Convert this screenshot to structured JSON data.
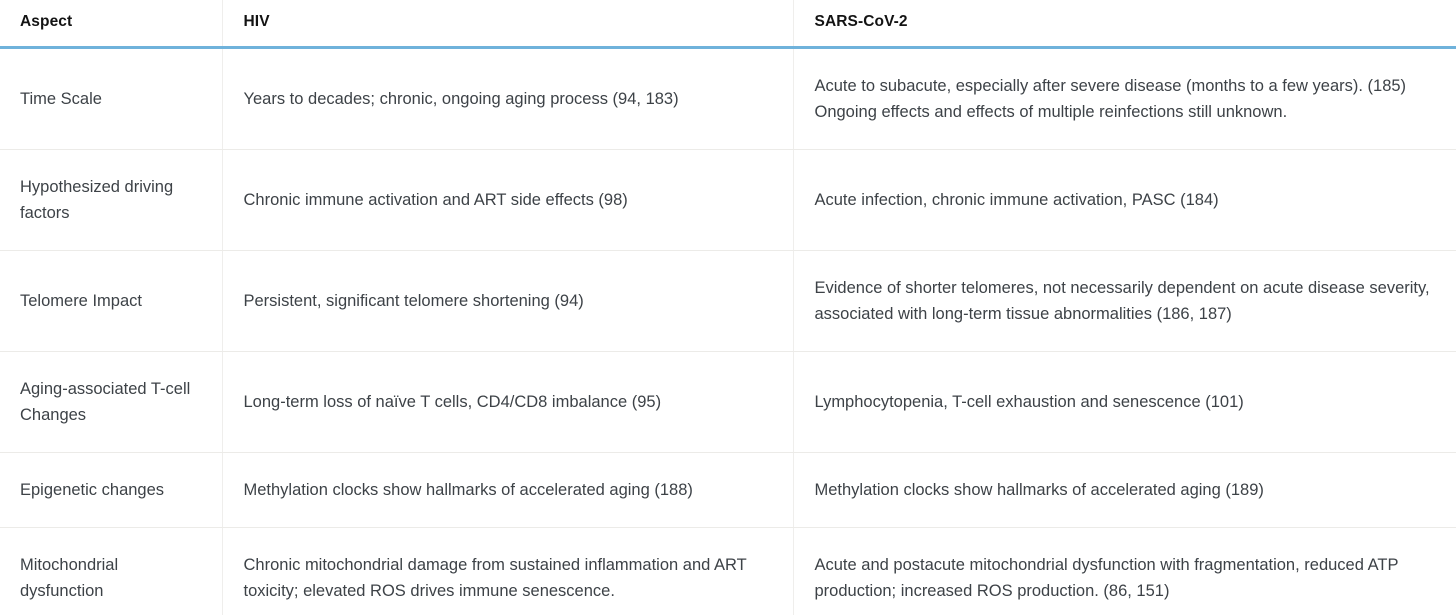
{
  "table": {
    "columns": [
      {
        "key": "aspect",
        "label": "Aspect"
      },
      {
        "key": "hiv",
        "label": "HIV"
      },
      {
        "key": "sars",
        "label": "SARS-CoV-2"
      }
    ],
    "rows": [
      {
        "aspect": "Time Scale",
        "hiv": "Years to decades; chronic, ongoing aging process (94, 183)",
        "sars": "Acute to subacute, especially after severe disease (months to a few years). (185) Ongoing effects and effects of multiple reinfections still unknown."
      },
      {
        "aspect": "Hypothesized driving factors",
        "hiv": "Chronic immune activation and ART side effects (98)",
        "sars": "Acute infection, chronic immune activation, PASC (184)"
      },
      {
        "aspect": "Telomere Impact",
        "hiv": "Persistent, significant telomere shortening (94)",
        "sars": "Evidence of shorter telomeres, not necessarily dependent on acute disease severity, associated with long-term tissue abnormalities (186, 187)"
      },
      {
        "aspect": "Aging-associated T-cell Changes",
        "hiv": "Long-term loss of naïve T cells, CD4/CD8 imbalance (95)",
        "sars": "Lymphocytopenia, T-cell exhaustion and senescence (101)"
      },
      {
        "aspect": "Epigenetic changes",
        "hiv": "Methylation clocks show hallmarks of accelerated aging (188)",
        "sars": "Methylation clocks show hallmarks of accelerated aging (189)"
      },
      {
        "aspect": "Mitochondrial dysfunction",
        "hiv": "Chronic mitochondrial damage from sustained inflammation and ART toxicity; elevated ROS drives immune senescence.",
        "sars": "Acute and postacute mitochondrial dysfunction with fragmentation, reduced ATP production; increased ROS production. (86, 151)"
      }
    ]
  },
  "colors": {
    "header_underline": "#6FB2DB",
    "row_border": "#ECEBE8",
    "column_border": "#EFEEEC",
    "header_text": "#131313",
    "body_text": "#3D4247",
    "page_background": "#FAF9F6",
    "table_background": "#FFFFFF"
  }
}
